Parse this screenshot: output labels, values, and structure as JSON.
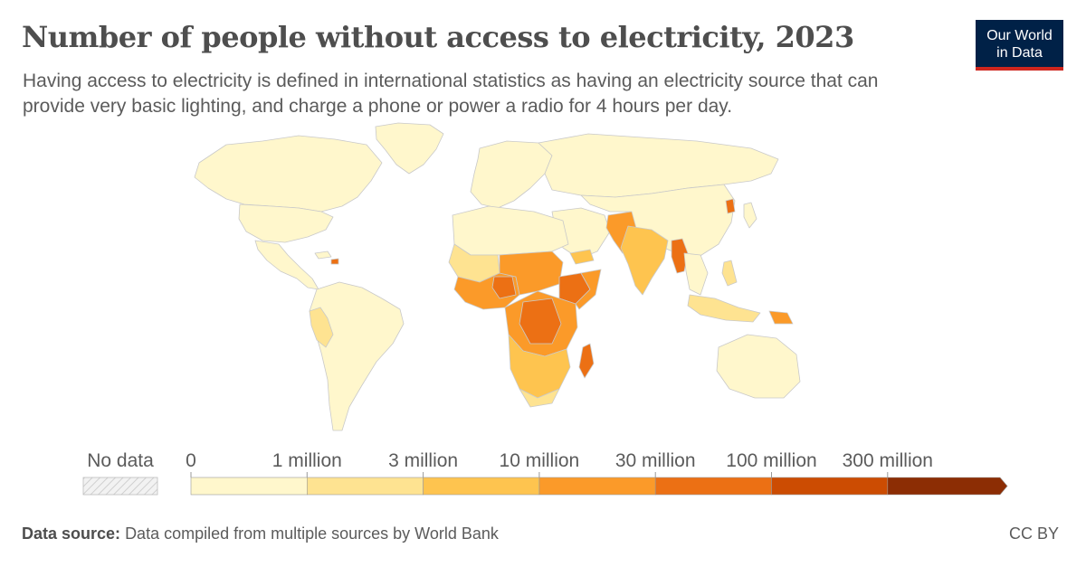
{
  "header": {
    "title": "Number of people without access to electricity, 2023",
    "subtitle": "Having access to electricity is defined in international statistics as having an electricity source that can provide very basic lighting, and charge a phone or power a radio for 4 hours per day.",
    "logo_line1": "Our World",
    "logo_line2": "in Data"
  },
  "legend": {
    "no_data_label": "No data",
    "bins": [
      {
        "label": "0",
        "color": "#fff7cc"
      },
      {
        "label": "1 million",
        "color": "#fee391"
      },
      {
        "label": "3 million",
        "color": "#fec44f"
      },
      {
        "label": "10 million",
        "color": "#fb9a29"
      },
      {
        "label": "30 million",
        "color": "#ec7014"
      },
      {
        "label": "100 million",
        "color": "#cc4c02"
      },
      {
        "label": "300 million",
        "color": "#8c2d04"
      }
    ]
  },
  "colors": {
    "ocean": "#ffffff",
    "border": "#c9c9c9",
    "no_data": "#e6e6e6"
  },
  "footer": {
    "source_label": "Data source:",
    "source_text": "Data compiled from multiple sources by World Bank",
    "license": "CC BY"
  }
}
